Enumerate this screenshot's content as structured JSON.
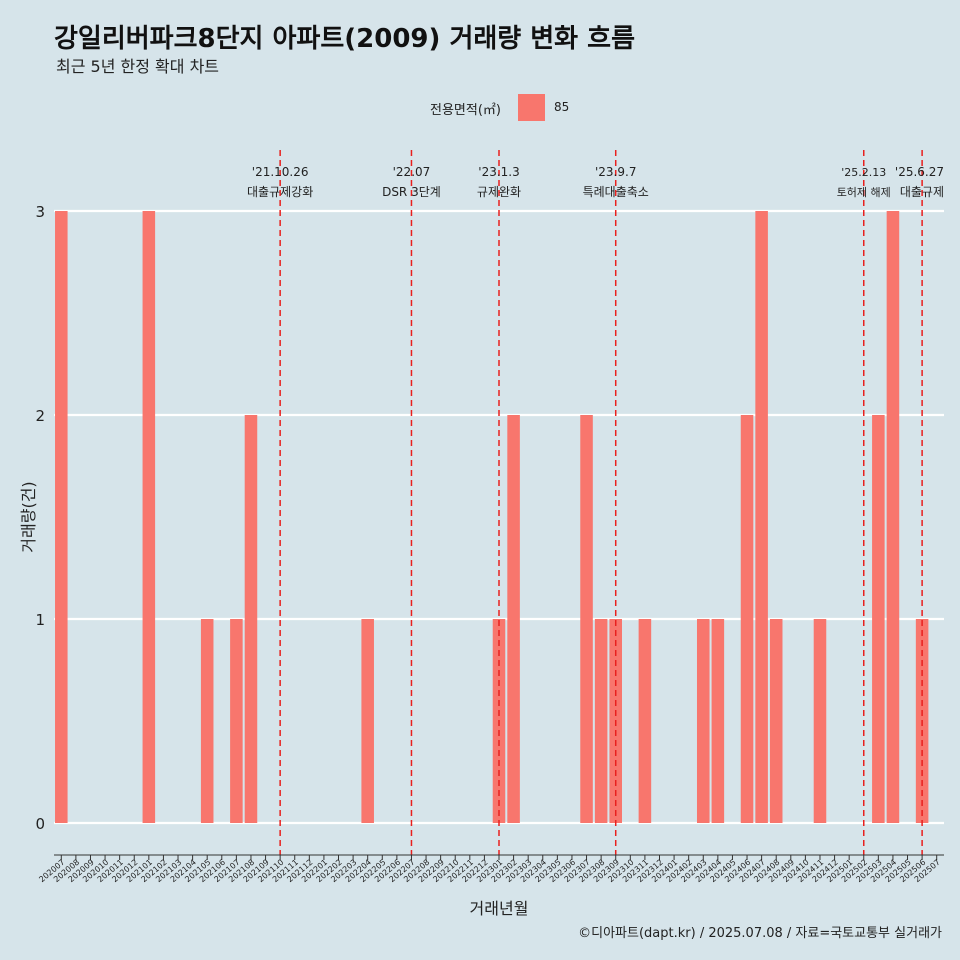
{
  "header": {
    "title": "강일리버파크8단지 아파트(2009) 거래량 변화 흐름",
    "subtitle": "최근 5년 한정 확대 차트"
  },
  "legend": {
    "title": "전용면적(㎡)",
    "label": "85"
  },
  "caption": "©디아파트(dapt.kr) / 2025.07.08 / 자료=국토교통부 실거래가",
  "colors": {
    "bar": "#f8766d",
    "event_line": "#e8201e",
    "grid": "#ffffff",
    "background": "#d6e4ea"
  },
  "chart_data": {
    "type": "bar",
    "xlabel": "거래년월",
    "ylabel": "거래량(건)",
    "ylim": [
      0,
      3
    ],
    "yticks": [
      0,
      1,
      2,
      3
    ],
    "grid": true,
    "legend_position": "top",
    "categories": [
      "202007",
      "202008",
      "202009",
      "202010",
      "202011",
      "202012",
      "202101",
      "202102",
      "202103",
      "202104",
      "202105",
      "202106",
      "202107",
      "202108",
      "202109",
      "202110",
      "202111",
      "202112",
      "202201",
      "202202",
      "202203",
      "202204",
      "202205",
      "202206",
      "202207",
      "202208",
      "202209",
      "202210",
      "202211",
      "202212",
      "202301",
      "202302",
      "202303",
      "202304",
      "202305",
      "202306",
      "202307",
      "202308",
      "202309",
      "202310",
      "202311",
      "202312",
      "202401",
      "202402",
      "202403",
      "202404",
      "202405",
      "202406",
      "202407",
      "202408",
      "202409",
      "202410",
      "202411",
      "202412",
      "202501",
      "202502",
      "202503",
      "202504",
      "202505",
      "202506",
      "202507"
    ],
    "series": [
      {
        "name": "85",
        "values": [
          3,
          0,
          0,
          0,
          0,
          0,
          3,
          0,
          0,
          0,
          1,
          0,
          1,
          2,
          0,
          0,
          0,
          0,
          0,
          0,
          0,
          1,
          0,
          0,
          0,
          0,
          0,
          0,
          0,
          0,
          1,
          2,
          0,
          0,
          0,
          0,
          2,
          1,
          1,
          0,
          1,
          0,
          0,
          0,
          1,
          1,
          0,
          2,
          3,
          1,
          0,
          0,
          1,
          0,
          0,
          0,
          2,
          3,
          0,
          1,
          0
        ]
      }
    ],
    "annotations": [
      {
        "position": "202110",
        "date": "'21.10.26",
        "label": "대출규제강화"
      },
      {
        "position": "202207",
        "date": "'22.07",
        "label": "DSR 3단계"
      },
      {
        "position": "202301",
        "date": "'23.1.3",
        "label": "규제완화"
      },
      {
        "position": "202309",
        "date": "'23.9.7",
        "label": "특례대출축소"
      },
      {
        "position": "202502",
        "date": "'25.2.13",
        "label": "토허제 해제"
      },
      {
        "position": "202506",
        "date": "'25.6.27",
        "label": "대출규제"
      }
    ]
  }
}
